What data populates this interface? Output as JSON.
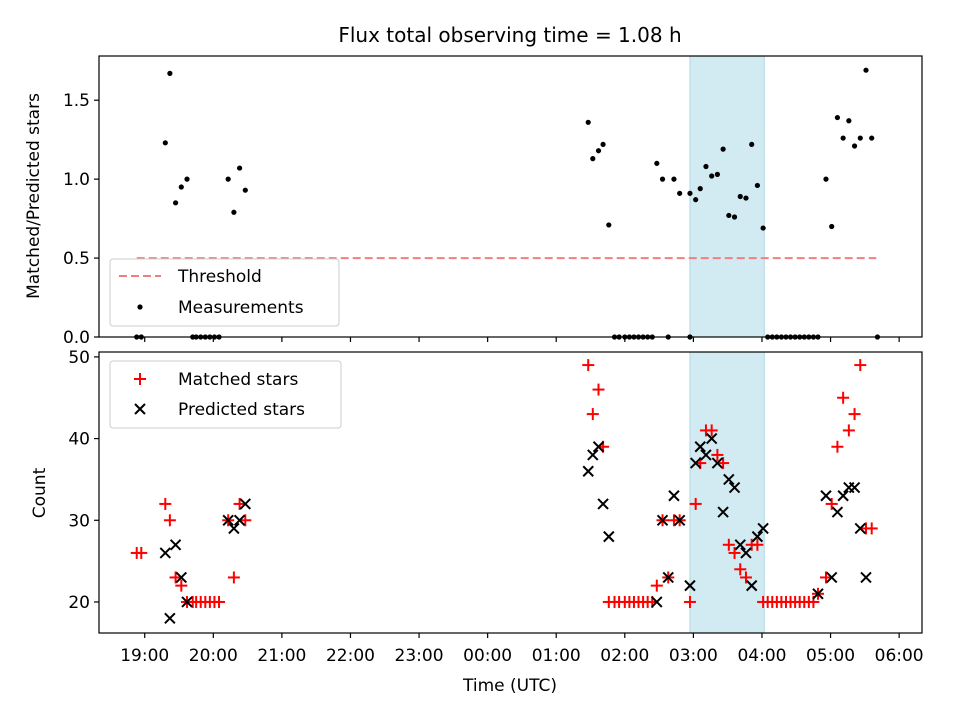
{
  "figure": {
    "title": "Flux total observing time = 1.08 h"
  },
  "chart_data": [
    {
      "type": "scatter",
      "panel": "top",
      "xlabel": "",
      "ylabel": "Matched/Predicted stars",
      "xlim": [
        "18:20",
        "06:20"
      ],
      "ylim": [
        0,
        1.78
      ],
      "yticks": [
        0.0,
        0.5,
        1.0,
        1.5
      ],
      "ytick_labels": [
        "0.0",
        "0.5",
        "1.0",
        "1.5"
      ],
      "highlight_span": [
        "02:57",
        "04:02"
      ],
      "highlight_color": "#add8e6",
      "legend": {
        "placement": "lower-left",
        "entries": [
          "Threshold",
          "Measurements"
        ]
      },
      "threshold": {
        "name": "Threshold",
        "value": 0.5,
        "x_start": "18:53",
        "x_end": "05:40",
        "color": "#f08080",
        "style": "dashed"
      },
      "series": [
        {
          "name": "Measurements",
          "color": "#000000",
          "marker": "dot",
          "points": [
            [
              "18:53",
              0
            ],
            [
              "18:57",
              0
            ],
            [
              "19:18",
              1.23
            ],
            [
              "19:22",
              1.67
            ],
            [
              "19:27",
              0.85
            ],
            [
              "19:32",
              0.95
            ],
            [
              "19:37",
              1.0
            ],
            [
              "19:42",
              0
            ],
            [
              "19:45",
              0
            ],
            [
              "19:49",
              0
            ],
            [
              "19:53",
              0
            ],
            [
              "19:57",
              0
            ],
            [
              "20:01",
              0
            ],
            [
              "20:05",
              0
            ],
            [
              "20:13",
              1.0
            ],
            [
              "20:18",
              0.79
            ],
            [
              "20:23",
              1.07
            ],
            [
              "20:28",
              0.93
            ],
            [
              "01:28",
              1.36
            ],
            [
              "01:32",
              1.13
            ],
            [
              "01:37",
              1.18
            ],
            [
              "01:41",
              1.22
            ],
            [
              "01:46",
              0.71
            ],
            [
              "01:51",
              0
            ],
            [
              "01:55",
              0
            ],
            [
              "02:00",
              0
            ],
            [
              "02:04",
              0
            ],
            [
              "02:08",
              0
            ],
            [
              "02:12",
              0
            ],
            [
              "02:16",
              0
            ],
            [
              "02:20",
              0
            ],
            [
              "02:24",
              0
            ],
            [
              "02:28",
              1.1
            ],
            [
              "02:33",
              1.0
            ],
            [
              "02:38",
              0
            ],
            [
              "02:43",
              1.0
            ],
            [
              "02:48",
              0.91
            ],
            [
              "02:57",
              0
            ],
            [
              "02:57",
              0.91
            ],
            [
              "03:02",
              0.87
            ],
            [
              "03:06",
              0.94
            ],
            [
              "03:11",
              1.08
            ],
            [
              "03:16",
              1.02
            ],
            [
              "03:21",
              1.03
            ],
            [
              "03:26",
              1.19
            ],
            [
              "03:31",
              0.77
            ],
            [
              "03:36",
              0.76
            ],
            [
              "03:41",
              0.89
            ],
            [
              "03:46",
              0.88
            ],
            [
              "03:51",
              1.22
            ],
            [
              "03:56",
              0.96
            ],
            [
              "04:01",
              0.69
            ],
            [
              "04:05",
              0
            ],
            [
              "04:09",
              0
            ],
            [
              "04:13",
              0
            ],
            [
              "04:17",
              0
            ],
            [
              "04:21",
              0
            ],
            [
              "04:25",
              0
            ],
            [
              "04:29",
              0
            ],
            [
              "04:33",
              0
            ],
            [
              "04:37",
              0
            ],
            [
              "04:41",
              0
            ],
            [
              "04:45",
              0
            ],
            [
              "04:49",
              0
            ],
            [
              "04:56",
              1.0
            ],
            [
              "05:01",
              0.7
            ],
            [
              "05:06",
              1.39
            ],
            [
              "05:11",
              1.26
            ],
            [
              "05:16",
              1.37
            ],
            [
              "05:21",
              1.21
            ],
            [
              "05:26",
              1.26
            ],
            [
              "05:31",
              1.69
            ],
            [
              "05:36",
              1.26
            ],
            [
              "05:41",
              0
            ]
          ]
        }
      ]
    },
    {
      "type": "scatter",
      "panel": "bottom",
      "xlabel": "Time (UTC)",
      "ylabel": "Count",
      "xlim": [
        "18:20",
        "06:20"
      ],
      "ylim": [
        16.2,
        50.6
      ],
      "yticks": [
        20,
        30,
        40,
        50
      ],
      "xtick_labels": [
        "19:00",
        "20:00",
        "21:00",
        "22:00",
        "23:00",
        "00:00",
        "01:00",
        "02:00",
        "03:00",
        "04:00",
        "05:00",
        "06:00"
      ],
      "highlight_span": [
        "02:57",
        "04:02"
      ],
      "highlight_color": "#add8e6",
      "legend": {
        "placement": "top-left",
        "entries": [
          "Matched stars",
          "Predicted stars"
        ]
      },
      "series": [
        {
          "name": "Matched stars",
          "color": "#ff0000",
          "marker": "plus",
          "points": [
            [
              "18:53",
              26
            ],
            [
              "18:57",
              26
            ],
            [
              "19:18",
              32
            ],
            [
              "19:22",
              30
            ],
            [
              "19:27",
              23
            ],
            [
              "19:32",
              22
            ],
            [
              "19:37",
              20
            ],
            [
              "19:42",
              20
            ],
            [
              "19:45",
              20
            ],
            [
              "19:49",
              20
            ],
            [
              "19:53",
              20
            ],
            [
              "19:57",
              20
            ],
            [
              "20:01",
              20
            ],
            [
              "20:05",
              20
            ],
            [
              "20:13",
              30
            ],
            [
              "20:18",
              23
            ],
            [
              "20:23",
              32
            ],
            [
              "20:28",
              30
            ],
            [
              "01:28",
              49
            ],
            [
              "01:32",
              43
            ],
            [
              "01:37",
              46
            ],
            [
              "01:41",
              39
            ],
            [
              "01:46",
              20
            ],
            [
              "01:51",
              20
            ],
            [
              "01:55",
              20
            ],
            [
              "02:00",
              20
            ],
            [
              "02:04",
              20
            ],
            [
              "02:08",
              20
            ],
            [
              "02:12",
              20
            ],
            [
              "02:16",
              20
            ],
            [
              "02:20",
              20
            ],
            [
              "02:24",
              20
            ],
            [
              "02:28",
              22
            ],
            [
              "02:33",
              30
            ],
            [
              "02:38",
              23
            ],
            [
              "02:43",
              30
            ],
            [
              "02:48",
              30
            ],
            [
              "02:57",
              20
            ],
            [
              "03:02",
              32
            ],
            [
              "03:06",
              37
            ],
            [
              "03:11",
              41
            ],
            [
              "03:16",
              41
            ],
            [
              "03:21",
              38
            ],
            [
              "03:26",
              37
            ],
            [
              "03:31",
              27
            ],
            [
              "03:36",
              26
            ],
            [
              "03:41",
              24
            ],
            [
              "03:46",
              23
            ],
            [
              "03:51",
              27
            ],
            [
              "03:56",
              27
            ],
            [
              "04:01",
              20
            ],
            [
              "04:05",
              20
            ],
            [
              "04:09",
              20
            ],
            [
              "04:13",
              20
            ],
            [
              "04:17",
              20
            ],
            [
              "04:21",
              20
            ],
            [
              "04:25",
              20
            ],
            [
              "04:29",
              20
            ],
            [
              "04:33",
              20
            ],
            [
              "04:37",
              20
            ],
            [
              "04:41",
              20
            ],
            [
              "04:45",
              20
            ],
            [
              "04:49",
              21
            ],
            [
              "04:56",
              23
            ],
            [
              "05:01",
              32
            ],
            [
              "05:06",
              39
            ],
            [
              "05:11",
              45
            ],
            [
              "05:16",
              41
            ],
            [
              "05:21",
              43
            ],
            [
              "05:26",
              49
            ],
            [
              "05:31",
              29
            ],
            [
              "05:36",
              29
            ]
          ]
        },
        {
          "name": "Predicted stars",
          "color": "#000000",
          "marker": "x",
          "points": [
            [
              "19:18",
              26
            ],
            [
              "19:22",
              18
            ],
            [
              "19:27",
              27
            ],
            [
              "19:32",
              23
            ],
            [
              "19:37",
              20
            ],
            [
              "20:13",
              30
            ],
            [
              "20:18",
              29
            ],
            [
              "20:23",
              30
            ],
            [
              "20:28",
              32
            ],
            [
              "01:28",
              36
            ],
            [
              "01:32",
              38
            ],
            [
              "01:37",
              39
            ],
            [
              "01:41",
              32
            ],
            [
              "01:46",
              28
            ],
            [
              "02:28",
              20
            ],
            [
              "02:33",
              30
            ],
            [
              "02:38",
              23
            ],
            [
              "02:43",
              33
            ],
            [
              "02:48",
              30
            ],
            [
              "02:57",
              22
            ],
            [
              "03:02",
              37
            ],
            [
              "03:06",
              39
            ],
            [
              "03:11",
              38
            ],
            [
              "03:16",
              40
            ],
            [
              "03:21",
              37
            ],
            [
              "03:26",
              31
            ],
            [
              "03:31",
              35
            ],
            [
              "03:36",
              34
            ],
            [
              "03:41",
              27
            ],
            [
              "03:46",
              26
            ],
            [
              "03:51",
              22
            ],
            [
              "03:56",
              28
            ],
            [
              "04:01",
              29
            ],
            [
              "04:49",
              21
            ],
            [
              "04:56",
              33
            ],
            [
              "05:01",
              23
            ],
            [
              "05:06",
              31
            ],
            [
              "05:11",
              33
            ],
            [
              "05:16",
              34
            ],
            [
              "05:21",
              34
            ],
            [
              "05:26",
              29
            ],
            [
              "05:31",
              23
            ]
          ]
        }
      ]
    }
  ]
}
